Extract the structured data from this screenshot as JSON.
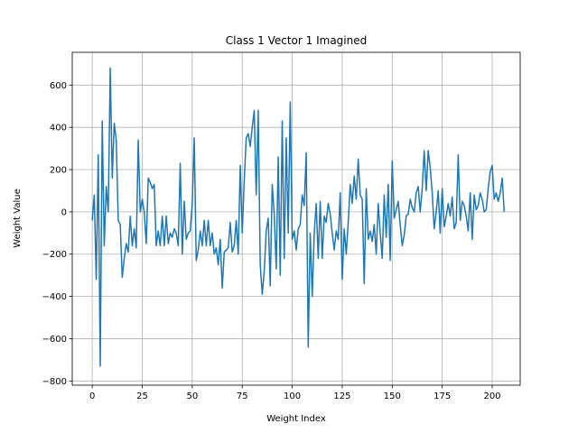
{
  "chart_data": {
    "type": "line",
    "title": "Class 1 Vector 1 Imagined",
    "xlabel": "Weight Index",
    "ylabel": "Weight Value",
    "xlim": [
      -10,
      214
    ],
    "ylim": [
      -820,
      755
    ],
    "xticks": [
      0,
      25,
      50,
      75,
      100,
      125,
      150,
      175,
      200
    ],
    "yticks": [
      -800,
      -600,
      -400,
      -200,
      0,
      200,
      400,
      600
    ],
    "xtick_labels": [
      "0",
      "25",
      "50",
      "75",
      "100",
      "125",
      "150",
      "175",
      "200"
    ],
    "ytick_labels": [
      "−800",
      "−600",
      "−400",
      "−200",
      "0",
      "200",
      "400",
      "600"
    ],
    "grid": true,
    "line_color": "#1f77b4",
    "series": [
      {
        "values": [
          -40,
          80,
          -320,
          270,
          -730,
          430,
          -160,
          120,
          0,
          680,
          160,
          420,
          340,
          -40,
          -60,
          -310,
          -220,
          -150,
          -190,
          -20,
          -160,
          -80,
          -170,
          340,
          0,
          60,
          0,
          -150,
          160,
          140,
          110,
          130,
          -160,
          -90,
          -160,
          -20,
          -160,
          -20,
          -150,
          -100,
          -120,
          -80,
          -100,
          -160,
          230,
          -200,
          50,
          -130,
          -100,
          -90,
          40,
          350,
          -230,
          -180,
          -90,
          -160,
          -40,
          -160,
          -40,
          -160,
          -100,
          -200,
          -170,
          -250,
          -130,
          -360,
          -190,
          -180,
          -170,
          -50,
          -190,
          -160,
          -40,
          -200,
          220,
          -100,
          150,
          350,
          370,
          310,
          400,
          480,
          80,
          480,
          -250,
          -390,
          -280,
          -90,
          -30,
          -350,
          130,
          -10,
          -270,
          260,
          -300,
          430,
          -220,
          350,
          -100,
          520,
          -130,
          -90,
          -180,
          -80,
          -60,
          80,
          30,
          280,
          -640,
          -100,
          -400,
          -100,
          40,
          -220,
          50,
          -220,
          -20,
          -50,
          40,
          -10,
          -100,
          -180,
          -90,
          -130,
          90,
          -320,
          -80,
          -200,
          -50,
          130,
          40,
          170,
          60,
          250,
          80,
          60,
          -340,
          110,
          -130,
          -90,
          -140,
          -60,
          -200,
          40,
          -100,
          -220,
          80,
          -120,
          130,
          -230,
          240,
          -30,
          10,
          50,
          -60,
          -160,
          -110,
          -20,
          -10,
          60,
          20,
          0,
          90,
          120,
          0,
          110,
          290,
          100,
          290,
          210,
          90,
          -80,
          0,
          100,
          -100,
          110,
          -70,
          -20,
          40,
          -20,
          70,
          -80,
          -50,
          270,
          -40,
          50,
          30,
          -20,
          -90,
          90,
          -130,
          80,
          10,
          30,
          90,
          60,
          0,
          10,
          110,
          190,
          220,
          60,
          90,
          50,
          90,
          160,
          0
        ]
      }
    ]
  }
}
